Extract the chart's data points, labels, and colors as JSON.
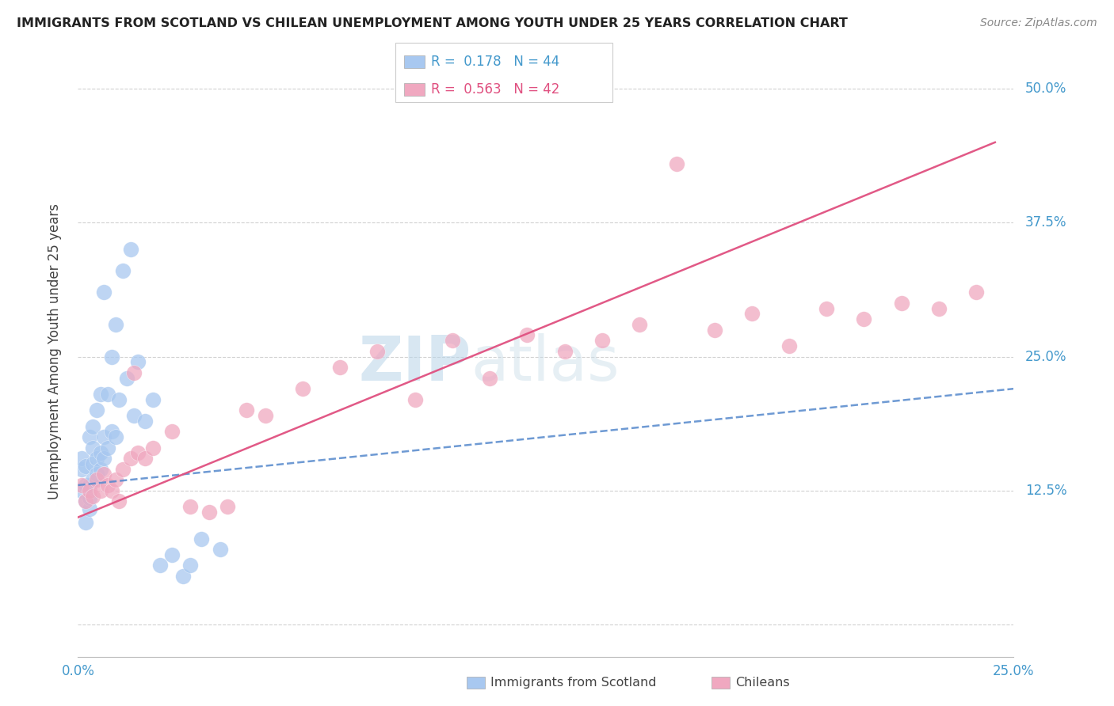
{
  "title": "IMMIGRANTS FROM SCOTLAND VS CHILEAN UNEMPLOYMENT AMONG YOUTH UNDER 25 YEARS CORRELATION CHART",
  "source": "Source: ZipAtlas.com",
  "ylabel": "Unemployment Among Youth under 25 years",
  "xlim": [
    0.0,
    0.25
  ],
  "ylim": [
    -0.03,
    0.54
  ],
  "yticks": [
    0.0,
    0.125,
    0.25,
    0.375,
    0.5
  ],
  "ytick_labels": [
    "",
    "12.5%",
    "25.0%",
    "37.5%",
    "50.0%"
  ],
  "xticks": [
    0.0,
    0.25
  ],
  "xtick_labels": [
    "0.0%",
    "25.0%"
  ],
  "scotland_R": "0.178",
  "scotland_N": "44",
  "chilean_R": "0.563",
  "chilean_N": "42",
  "scotland_color": "#a8c8f0",
  "chilean_color": "#f0a8c0",
  "trendline_scotland_color": "#5588cc",
  "trendline_chilean_color": "#e05080",
  "watermark_zip": "ZIP",
  "watermark_atlas": "atlas",
  "background_color": "#ffffff",
  "grid_color": "#cccccc",
  "tick_label_color": "#4499cc",
  "legend_border_color": "#cccccc",
  "scotland_points_x": [
    0.001,
    0.001,
    0.001,
    0.002,
    0.002,
    0.002,
    0.002,
    0.003,
    0.003,
    0.003,
    0.003,
    0.004,
    0.004,
    0.004,
    0.004,
    0.005,
    0.005,
    0.005,
    0.006,
    0.006,
    0.006,
    0.007,
    0.007,
    0.007,
    0.008,
    0.008,
    0.009,
    0.009,
    0.01,
    0.01,
    0.011,
    0.012,
    0.013,
    0.014,
    0.015,
    0.016,
    0.018,
    0.02,
    0.022,
    0.025,
    0.028,
    0.03,
    0.033,
    0.038
  ],
  "scotland_points_y": [
    0.125,
    0.145,
    0.155,
    0.095,
    0.115,
    0.13,
    0.148,
    0.108,
    0.118,
    0.13,
    0.175,
    0.135,
    0.15,
    0.165,
    0.185,
    0.14,
    0.155,
    0.2,
    0.145,
    0.16,
    0.215,
    0.155,
    0.175,
    0.31,
    0.165,
    0.215,
    0.18,
    0.25,
    0.175,
    0.28,
    0.21,
    0.33,
    0.23,
    0.35,
    0.195,
    0.245,
    0.19,
    0.21,
    0.055,
    0.065,
    0.045,
    0.055,
    0.08,
    0.07
  ],
  "chilean_points_x": [
    0.001,
    0.002,
    0.003,
    0.004,
    0.005,
    0.006,
    0.007,
    0.008,
    0.009,
    0.01,
    0.011,
    0.012,
    0.014,
    0.016,
    0.018,
    0.02,
    0.025,
    0.03,
    0.035,
    0.04,
    0.05,
    0.06,
    0.07,
    0.08,
    0.09,
    0.1,
    0.11,
    0.12,
    0.13,
    0.14,
    0.15,
    0.16,
    0.17,
    0.18,
    0.19,
    0.2,
    0.21,
    0.22,
    0.23,
    0.24,
    0.015,
    0.045
  ],
  "chilean_points_y": [
    0.13,
    0.115,
    0.125,
    0.12,
    0.135,
    0.125,
    0.14,
    0.13,
    0.125,
    0.135,
    0.115,
    0.145,
    0.155,
    0.16,
    0.155,
    0.165,
    0.18,
    0.11,
    0.105,
    0.11,
    0.195,
    0.22,
    0.24,
    0.255,
    0.21,
    0.265,
    0.23,
    0.27,
    0.255,
    0.265,
    0.28,
    0.43,
    0.275,
    0.29,
    0.26,
    0.295,
    0.285,
    0.3,
    0.295,
    0.31,
    0.235,
    0.2
  ],
  "scotland_trend_x": [
    0.0,
    0.25
  ],
  "scotland_trend_y": [
    0.13,
    0.22
  ],
  "chilean_trend_x": [
    0.0,
    0.245
  ],
  "chilean_trend_y": [
    0.1,
    0.45
  ]
}
